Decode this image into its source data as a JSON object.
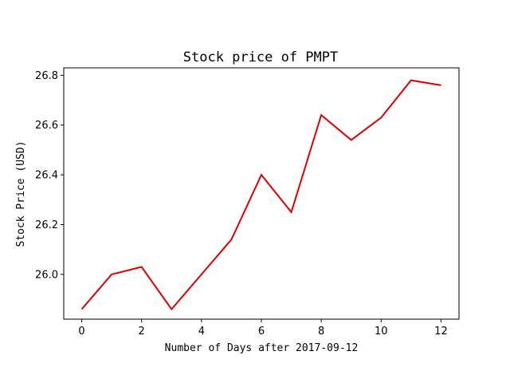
{
  "chart_data": {
    "type": "line",
    "title": "Stock price of PMPT",
    "xlabel": "Number of Days after 2017-09-12",
    "ylabel": "Stock Price (USD)",
    "xlim": [
      -0.6,
      12.6
    ],
    "ylim": [
      25.82,
      26.83
    ],
    "xticks": [
      0,
      2,
      4,
      6,
      8,
      10,
      12
    ],
    "xtick_labels": [
      "0",
      "2",
      "4",
      "6",
      "8",
      "10",
      "12"
    ],
    "yticks": [
      26.0,
      26.2,
      26.4,
      26.6,
      26.8
    ],
    "ytick_labels": [
      "26.0",
      "26.2",
      "26.4",
      "26.6",
      "26.8"
    ],
    "grid": false,
    "series": [
      {
        "name": "PMPT",
        "color": "#dd0000",
        "x": [
          0,
          1,
          2,
          3,
          4,
          5,
          6,
          7,
          8,
          9,
          10,
          11,
          12
        ],
        "values": [
          25.86,
          26.0,
          26.03,
          25.86,
          26.0,
          26.14,
          26.4,
          26.25,
          26.64,
          26.54,
          26.63,
          26.78,
          26.76
        ]
      }
    ]
  }
}
